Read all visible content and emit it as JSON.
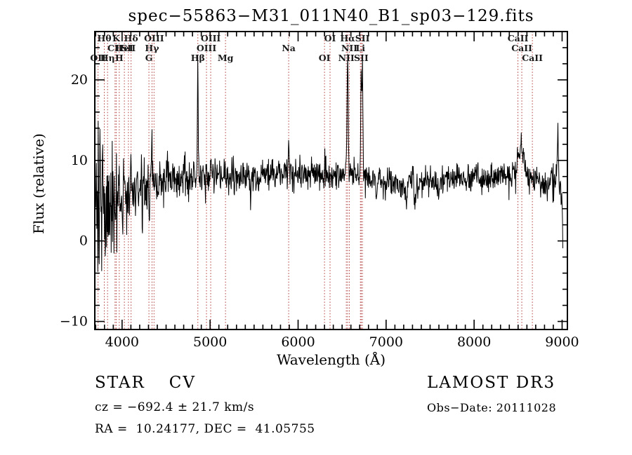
{
  "title": "spec−55863−M31_011N40_B1_sp03−129.fits",
  "footer": {
    "classification": "STAR",
    "subclass": "CV",
    "survey": "LAMOST DR3",
    "cz": "cz = −692.4 ± 21.7 km/s",
    "obs_date": "Obs−Date: 20111028",
    "ra_dec": "RA =  10.24177, DEC =  41.05755"
  },
  "chart_data": {
    "type": "line",
    "title": "spec−55863−M31_011N40_B1_sp03−129.fits",
    "xlabel": "Wavelength (Å)",
    "ylabel": "Flux (relative)",
    "xlim": [
      3690,
      9060
    ],
    "ylim": [
      -11,
      26
    ],
    "xticks": [
      4000,
      5000,
      6000,
      7000,
      8000,
      9000
    ],
    "yticks": [
      -10,
      0,
      10,
      20
    ],
    "x_minor_step": 100,
    "y_minor_step": 2,
    "grid": false,
    "colors": {
      "spectrum": "#000000",
      "markers": "#b03a3a",
      "frame": "#000000"
    },
    "spectrum": {
      "description": "Noisy stellar spectrum: flux ~1→6 rising 3700–4100 Å with large noise spikes (−10 to +17), flat continuum ~7–8.5 across 4500–8900 Å, strong emission spikes at Hβ 4861 (~21), Hα 6563 (~23, near top of frame), SII 6717/6731 (~22), moderate spikes at Hγ 4340 (~13) and Na 5893 (~13), CaII bump near 8500 (~12), spike near 8950 (~14), absorption dips near 7230–7330 (~3) and 7600, flux drops to ~0 at 9000 Å",
      "range": [
        3700,
        9010
      ],
      "sample_step": 4,
      "continuum": [
        [
          3700,
          1.0
        ],
        [
          3720,
          2.5
        ],
        [
          3760,
          3.5
        ],
        [
          3800,
          4.2
        ],
        [
          3850,
          4.6
        ],
        [
          3900,
          5.0
        ],
        [
          3960,
          5.3
        ],
        [
          4000,
          5.5
        ],
        [
          4100,
          6.0
        ],
        [
          4200,
          6.5
        ],
        [
          4300,
          7.0
        ],
        [
          4400,
          7.2
        ],
        [
          4500,
          7.4
        ],
        [
          4700,
          7.6
        ],
        [
          4861,
          7.8
        ],
        [
          5000,
          7.9
        ],
        [
          5200,
          8.0
        ],
        [
          5400,
          8.0
        ],
        [
          5600,
          8.1
        ],
        [
          5800,
          8.2
        ],
        [
          6000,
          8.4
        ],
        [
          6200,
          8.2
        ],
        [
          6400,
          8.3
        ],
        [
          6563,
          8.4
        ],
        [
          6700,
          8.0
        ],
        [
          6900,
          7.6
        ],
        [
          7100,
          7.3
        ],
        [
          7300,
          7.0
        ],
        [
          7500,
          7.3
        ],
        [
          7700,
          7.6
        ],
        [
          7900,
          7.8
        ],
        [
          8100,
          8.0
        ],
        [
          8300,
          8.1
        ],
        [
          8500,
          8.3
        ],
        [
          8650,
          7.8
        ],
        [
          8800,
          7.4
        ],
        [
          8900,
          7.6
        ],
        [
          8950,
          7.8
        ],
        [
          9000,
          4.5
        ],
        [
          9010,
          1.5
        ]
      ],
      "noise_sigma": [
        [
          3700,
          5.2
        ],
        [
          3750,
          5.0
        ],
        [
          3800,
          4.8
        ],
        [
          3850,
          4.4
        ],
        [
          3900,
          4.0
        ],
        [
          3950,
          3.6
        ],
        [
          4000,
          3.2
        ],
        [
          4100,
          2.6
        ],
        [
          4200,
          2.2
        ],
        [
          4300,
          1.9
        ],
        [
          4400,
          1.7
        ],
        [
          4600,
          1.4
        ],
        [
          4800,
          1.2
        ],
        [
          5000,
          1.1
        ],
        [
          5500,
          1.0
        ],
        [
          6000,
          0.95
        ],
        [
          6500,
          0.9
        ],
        [
          7000,
          0.95
        ],
        [
          7500,
          0.9
        ],
        [
          8000,
          0.9
        ],
        [
          8500,
          0.85
        ],
        [
          8800,
          1.0
        ],
        [
          9010,
          1.3
        ]
      ],
      "features": [
        {
          "wl": 4101,
          "amp": 3.5,
          "sigma": 5
        },
        {
          "wl": 4340,
          "amp": 5.5,
          "sigma": 5
        },
        {
          "wl": 4861,
          "amp": 13.5,
          "sigma": 5
        },
        {
          "wl": 4959,
          "amp": 1.5,
          "sigma": 4
        },
        {
          "wl": 5007,
          "amp": 2.5,
          "sigma": 4
        },
        {
          "wl": 5893,
          "amp": 4.5,
          "sigma": 5
        },
        {
          "wl": 6300,
          "amp": 2.0,
          "sigma": 4
        },
        {
          "wl": 6563,
          "amp": 16.5,
          "sigma": 6
        },
        {
          "wl": 6717,
          "amp": 12.5,
          "sigma": 5
        },
        {
          "wl": 6731,
          "amp": 14.0,
          "sigma": 5
        },
        {
          "wl": 8498,
          "amp": 2.0,
          "sigma": 12
        },
        {
          "wl": 8542,
          "amp": 3.5,
          "sigma": 25
        },
        {
          "wl": 8950,
          "amp": 6.0,
          "sigma": 7
        },
        {
          "wl": 6890,
          "amp": -2.0,
          "sigma": 7
        },
        {
          "wl": 7230,
          "amp": -3.5,
          "sigma": 9
        },
        {
          "wl": 7330,
          "amp": -3.0,
          "sigma": 7
        },
        {
          "wl": 7600,
          "amp": -2.0,
          "sigma": 9
        },
        {
          "wl": 5460,
          "amp": -2.0,
          "sigma": 5
        }
      ]
    },
    "line_markers": {
      "style": "vertical dotted red lines, full plot height, labels in three rows at top",
      "rows": [
        {
          "row": 1,
          "lines": [
            {
              "label": "Hθ",
              "wavelength": 3798
            },
            {
              "label": "K",
              "wavelength": 3933
            },
            {
              "label": "Hδ",
              "wavelength": 4102
            },
            {
              "label": "OIII",
              "wavelength": 4363
            },
            {
              "label": "OIII",
              "wavelength": 5007
            },
            {
              "label": "OI",
              "wavelength": 6363
            },
            {
              "label": "Hα",
              "wavelength": 6563
            },
            {
              "label": "SII",
              "wavelength": 6731
            },
            {
              "label": "CaII",
              "wavelength": 8498
            }
          ]
        },
        {
          "row": 2,
          "lines": [
            {
              "label": "CII",
              "wavelength": 3920
            },
            {
              "label": "HeI",
              "wavelength": 4026
            },
            {
              "label": "SII",
              "wavelength": 4072
            },
            {
              "label": "Hγ",
              "wavelength": 4340
            },
            {
              "label": "OIII",
              "wavelength": 4959
            },
            {
              "label": "Na",
              "wavelength": 5893
            },
            {
              "label": "NII",
              "wavelength": 6583
            },
            {
              "label": "Li",
              "wavelength": 6708
            },
            {
              "label": "CaII",
              "wavelength": 8542
            }
          ]
        },
        {
          "row": 3,
          "lines": [
            {
              "label": "OII",
              "wavelength": 3727
            },
            {
              "label": "Hη",
              "wavelength": 3835
            },
            {
              "label": "H",
              "wavelength": 3968
            },
            {
              "label": "G",
              "wavelength": 4305
            },
            {
              "label": "Hβ",
              "wavelength": 4861
            },
            {
              "label": "Mg",
              "wavelength": 5175
            },
            {
              "label": "OI",
              "wavelength": 6300
            },
            {
              "label": "NII",
              "wavelength": 6548
            },
            {
              "label": "SII",
              "wavelength": 6717
            },
            {
              "label": "CaII",
              "wavelength": 8662
            }
          ]
        }
      ]
    }
  }
}
